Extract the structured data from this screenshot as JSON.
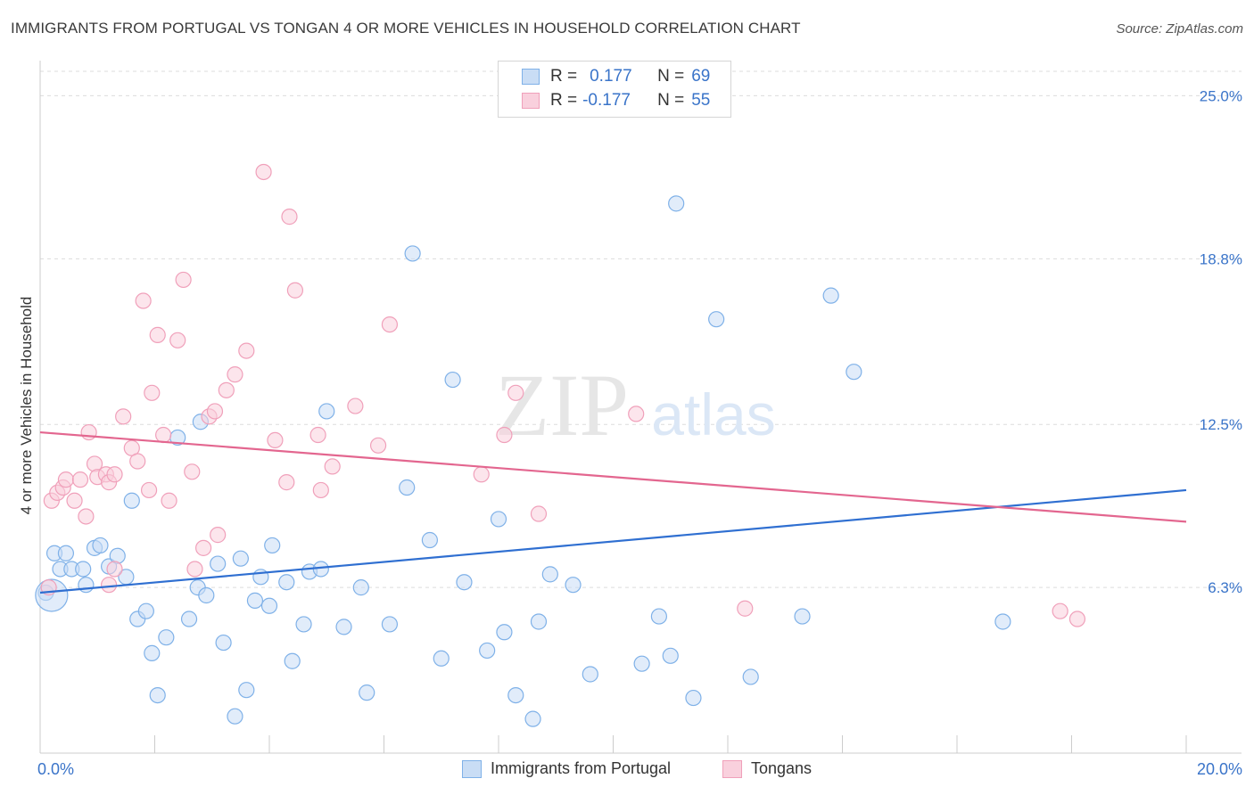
{
  "title": "IMMIGRANTS FROM PORTUGAL VS TONGAN 4 OR MORE VEHICLES IN HOUSEHOLD CORRELATION CHART",
  "source": "Source: ZipAtlas.com",
  "watermark": {
    "zip": "ZIP",
    "atlas": "atlas"
  },
  "legend": {
    "rows": [
      {
        "r_label": "R =",
        "r_value": "0.177",
        "n_label": "N =",
        "n_value": "69"
      },
      {
        "r_label": "R =",
        "r_value": "-0.177",
        "n_label": "N =",
        "n_value": "55"
      }
    ]
  },
  "chart_data": {
    "type": "scatter",
    "ylabel": "4 or more Vehicles in Household",
    "xlim": [
      0,
      20
    ],
    "ylim": [
      0,
      26.2
    ],
    "x_tick_labels": [
      "0.0%",
      "20.0%"
    ],
    "y_ticks": [
      6.3,
      12.5,
      18.8,
      25.0
    ],
    "y_tick_labels": [
      "6.3%",
      "12.5%",
      "18.8%",
      "25.0%"
    ],
    "grid": true,
    "series": [
      {
        "name": "Immigrants from Portugal",
        "color": "#7fb1e8",
        "fill": "#c9ddf5",
        "line_color": "#2f6fd1",
        "trend": [
          [
            0,
            6.1
          ],
          [
            20,
            10.0
          ]
        ],
        "points": [
          [
            0.25,
            7.6
          ],
          [
            0.45,
            7.6
          ],
          [
            0.35,
            7.0
          ],
          [
            0.55,
            7.0
          ],
          [
            0.75,
            7.0
          ],
          [
            0.8,
            6.4
          ],
          [
            0.95,
            7.8
          ],
          [
            1.05,
            7.9
          ],
          [
            1.2,
            7.1
          ],
          [
            1.35,
            7.5
          ],
          [
            1.5,
            6.7
          ],
          [
            1.6,
            9.6
          ],
          [
            1.7,
            5.1
          ],
          [
            1.85,
            5.4
          ],
          [
            1.95,
            3.8
          ],
          [
            2.05,
            2.2
          ],
          [
            2.2,
            4.4
          ],
          [
            2.4,
            12.0
          ],
          [
            2.6,
            5.1
          ],
          [
            2.75,
            6.3
          ],
          [
            2.8,
            12.6
          ],
          [
            2.9,
            6.0
          ],
          [
            3.1,
            7.2
          ],
          [
            3.2,
            4.2
          ],
          [
            3.4,
            1.4
          ],
          [
            3.5,
            7.4
          ],
          [
            3.6,
            2.4
          ],
          [
            3.75,
            5.8
          ],
          [
            3.85,
            6.7
          ],
          [
            4.0,
            5.6
          ],
          [
            4.05,
            7.9
          ],
          [
            4.3,
            6.5
          ],
          [
            4.4,
            3.5
          ],
          [
            4.6,
            4.9
          ],
          [
            4.7,
            6.9
          ],
          [
            4.9,
            7.0
          ],
          [
            5.0,
            13.0
          ],
          [
            5.3,
            4.8
          ],
          [
            5.6,
            6.3
          ],
          [
            5.7,
            2.3
          ],
          [
            6.1,
            4.9
          ],
          [
            6.4,
            10.1
          ],
          [
            6.5,
            19.0
          ],
          [
            6.8,
            8.1
          ],
          [
            7.0,
            3.6
          ],
          [
            7.2,
            14.2
          ],
          [
            7.4,
            6.5
          ],
          [
            7.8,
            3.9
          ],
          [
            8.0,
            8.9
          ],
          [
            8.1,
            4.6
          ],
          [
            8.3,
            2.2
          ],
          [
            8.6,
            1.3
          ],
          [
            8.7,
            5.0
          ],
          [
            8.9,
            6.8
          ],
          [
            9.3,
            6.4
          ],
          [
            9.6,
            3.0
          ],
          [
            10.5,
            3.4
          ],
          [
            10.8,
            5.2
          ],
          [
            11.0,
            3.7
          ],
          [
            11.1,
            20.9
          ],
          [
            11.4,
            2.1
          ],
          [
            11.8,
            16.5
          ],
          [
            12.4,
            2.9
          ],
          [
            13.3,
            5.2
          ],
          [
            13.8,
            17.4
          ],
          [
            14.2,
            14.5
          ],
          [
            16.8,
            5.0
          ],
          [
            0.1,
            6.1
          ],
          [
            0.2,
            6.0
          ]
        ]
      },
      {
        "name": "Tongans",
        "color": "#f0a0ba",
        "fill": "#f9d0dd",
        "line_color": "#e3668f",
        "trend": [
          [
            0,
            12.2
          ],
          [
            20,
            8.8
          ]
        ],
        "points": [
          [
            0.2,
            9.6
          ],
          [
            0.3,
            9.9
          ],
          [
            0.4,
            10.1
          ],
          [
            0.45,
            10.4
          ],
          [
            0.6,
            9.6
          ],
          [
            0.7,
            10.4
          ],
          [
            0.85,
            12.2
          ],
          [
            0.95,
            11.0
          ],
          [
            1.0,
            10.5
          ],
          [
            1.15,
            10.6
          ],
          [
            1.2,
            10.3
          ],
          [
            1.3,
            10.6
          ],
          [
            1.45,
            12.8
          ],
          [
            1.6,
            11.6
          ],
          [
            1.7,
            11.1
          ],
          [
            1.8,
            17.2
          ],
          [
            1.9,
            10.0
          ],
          [
            1.95,
            13.7
          ],
          [
            2.05,
            15.9
          ],
          [
            2.15,
            12.1
          ],
          [
            2.25,
            9.6
          ],
          [
            2.4,
            15.7
          ],
          [
            2.5,
            18.0
          ],
          [
            2.65,
            10.7
          ],
          [
            2.7,
            7.0
          ],
          [
            2.85,
            7.8
          ],
          [
            2.95,
            12.8
          ],
          [
            3.05,
            13.0
          ],
          [
            3.1,
            8.3
          ],
          [
            3.25,
            13.8
          ],
          [
            3.4,
            14.4
          ],
          [
            3.6,
            15.3
          ],
          [
            3.9,
            22.1
          ],
          [
            4.1,
            11.9
          ],
          [
            4.3,
            10.3
          ],
          [
            4.35,
            20.4
          ],
          [
            4.45,
            17.6
          ],
          [
            4.85,
            12.1
          ],
          [
            4.9,
            10.0
          ],
          [
            5.1,
            10.9
          ],
          [
            5.5,
            13.2
          ],
          [
            5.9,
            11.7
          ],
          [
            6.1,
            16.3
          ],
          [
            7.7,
            10.6
          ],
          [
            8.1,
            12.1
          ],
          [
            8.3,
            13.7
          ],
          [
            8.7,
            9.1
          ],
          [
            10.4,
            12.9
          ],
          [
            12.3,
            5.5
          ],
          [
            17.8,
            5.4
          ],
          [
            18.1,
            5.1
          ],
          [
            0.15,
            6.3
          ],
          [
            1.2,
            6.4
          ],
          [
            1.3,
            7.0
          ],
          [
            0.8,
            9.0
          ]
        ]
      }
    ]
  }
}
